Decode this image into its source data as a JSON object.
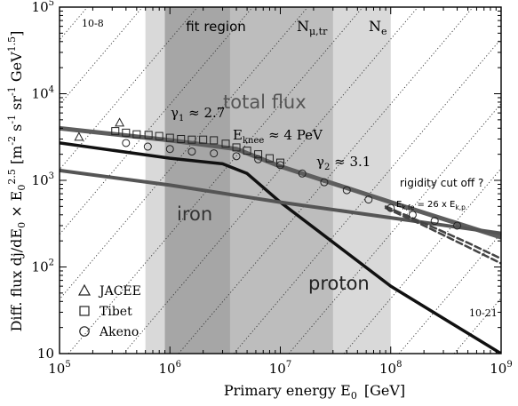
{
  "chart_data": {
    "type": "line",
    "title": "",
    "xlabel": "Primary energy  E",
    "xlabel_sub": "0",
    "xlabel_unit": "[GeV]",
    "ylabel": {
      "prefix": "Diff. flux  dj/dE",
      "sub1": "0",
      "times": " × E",
      "sub2": "0",
      "sup2": "2.5",
      "unit_open": "  [m",
      "e1": "-2",
      "s": " s",
      "e2": "-1",
      "sr": " sr",
      "e3": "-1",
      "gev": " GeV",
      "e4": "1.5",
      "unit_close": "]"
    },
    "x_log": true,
    "y_log": true,
    "xlim": [
      100000,
      1000000000
    ],
    "ylim": [
      10,
      100000
    ],
    "x_ticks": [
      {
        "value": 100000,
        "base": "10",
        "exp": "5"
      },
      {
        "value": 1000000,
        "base": "10",
        "exp": "6"
      },
      {
        "value": 10000000,
        "base": "10",
        "exp": "7"
      },
      {
        "value": 100000000,
        "base": "10",
        "exp": "8"
      },
      {
        "value": 1000000000,
        "base": "10",
        "exp": "9"
      }
    ],
    "y_ticks": [
      {
        "value": 10,
        "base": "10",
        "exp": ""
      },
      {
        "value": 100,
        "base": "10",
        "exp": "2"
      },
      {
        "value": 1000,
        "base": "10",
        "exp": "3"
      },
      {
        "value": 10000,
        "base": "10",
        "exp": "4"
      },
      {
        "value": 100000,
        "base": "10",
        "exp": "5"
      }
    ],
    "regions": [
      {
        "name": "outer-light",
        "x": [
          600000,
          100000000
        ],
        "color": "#d9d9d9"
      },
      {
        "name": "mid",
        "x": [
          900000,
          30000000
        ],
        "color": "#bdbdbd"
      },
      {
        "name": "dark",
        "x": [
          900000,
          3500000
        ],
        "color": "#a6a6a6"
      }
    ],
    "series": [
      {
        "name": "total flux",
        "kind": "line",
        "color": "#5e5e5e",
        "width": 5,
        "x": [
          100000,
          1000000,
          4000000,
          10000000,
          100000000,
          1000000000
        ],
        "y": [
          4000,
          2900,
          2300,
          1450,
          560,
          220
        ]
      },
      {
        "name": "proton",
        "kind": "line",
        "color": "#111111",
        "width": 3.5,
        "x": [
          100000,
          1000000,
          3000000,
          5000000,
          10000000,
          100000000,
          1000000000
        ],
        "y": [
          2700,
          1800,
          1550,
          1200,
          560,
          60,
          10
        ]
      },
      {
        "name": "iron",
        "kind": "line",
        "color": "#555555",
        "width": 4,
        "x": [
          100000,
          1000000,
          10000000,
          100000000,
          1000000000
        ],
        "y": [
          1300,
          880,
          560,
          370,
          245
        ]
      },
      {
        "name": "",
        "kind": "dashed",
        "color": "#444444",
        "width": 2.5,
        "x": [
          90000000,
          200000000,
          500000000,
          1000000000
        ],
        "y": [
          500,
          320,
          190,
          125
        ]
      },
      {
        "name": "",
        "kind": "dashed",
        "color": "#444444",
        "width": 2.5,
        "x": [
          90000000,
          200000000,
          500000000,
          1000000000
        ],
        "y": [
          480,
          300,
          170,
          110
        ]
      },
      {
        "name": "JACEE",
        "kind": "markers",
        "marker": "triangle",
        "x": [
          150000,
          350000
        ],
        "y": [
          3150,
          4600
        ]
      },
      {
        "name": "Tibet",
        "kind": "markers",
        "marker": "square",
        "x": [
          320000,
          400000,
          500000,
          640000,
          800000,
          1000000,
          1260000,
          1580000,
          2000000,
          2500000,
          3200000,
          4000000,
          5000000,
          6300000,
          8000000,
          10000000
        ],
        "y": [
          3700,
          3550,
          3400,
          3350,
          3250,
          3100,
          3000,
          2950,
          2950,
          2900,
          2650,
          2400,
          2200,
          2000,
          1800,
          1600
        ]
      },
      {
        "name": "Akeno",
        "kind": "markers",
        "marker": "circle",
        "x": [
          400000,
          630000,
          1000000,
          1580000,
          2500000,
          4000000,
          6300000,
          10000000,
          15800000,
          25000000,
          40000000,
          63000000,
          100000000,
          158000000,
          250000000,
          400000000
        ],
        "y": [
          2700,
          2450,
          2300,
          2150,
          2050,
          1900,
          1750,
          1500,
          1200,
          950,
          770,
          600,
          480,
          400,
          340,
          300
        ]
      }
    ],
    "iso_lines": {
      "slope": 1.5,
      "count": 14,
      "label_top": "10-8",
      "label_bottom": "10-21"
    },
    "annotations": {
      "fit_region": "fit region",
      "n_mu_tr": {
        "main": "N",
        "sub": "μ,tr"
      },
      "n_e": {
        "main": "N",
        "sub": "e"
      },
      "gamma1": {
        "main": "γ",
        "sub": "1",
        "rest": " ≈ 2.7"
      },
      "gamma2": {
        "main": "γ",
        "sub": "2",
        "rest": " ≈ 3.1"
      },
      "eknee": {
        "main": "E",
        "sub": "knee",
        "rest": " ≈ 4 PeV"
      },
      "total_flux": "total flux",
      "iron": "iron",
      "proton": "proton",
      "rigidity": "rigidity cut off ?",
      "ekfe": {
        "main": "E",
        "sub1": "k,fe",
        "mid": " = 26 x E",
        "sub2": "k,p"
      }
    },
    "legend": {
      "placement": "bottom-left",
      "entries": [
        {
          "marker": "triangle",
          "label": "JACEE"
        },
        {
          "marker": "square",
          "label": "Tibet"
        },
        {
          "marker": "circle",
          "label": "Akeno"
        }
      ]
    },
    "grid": false
  }
}
